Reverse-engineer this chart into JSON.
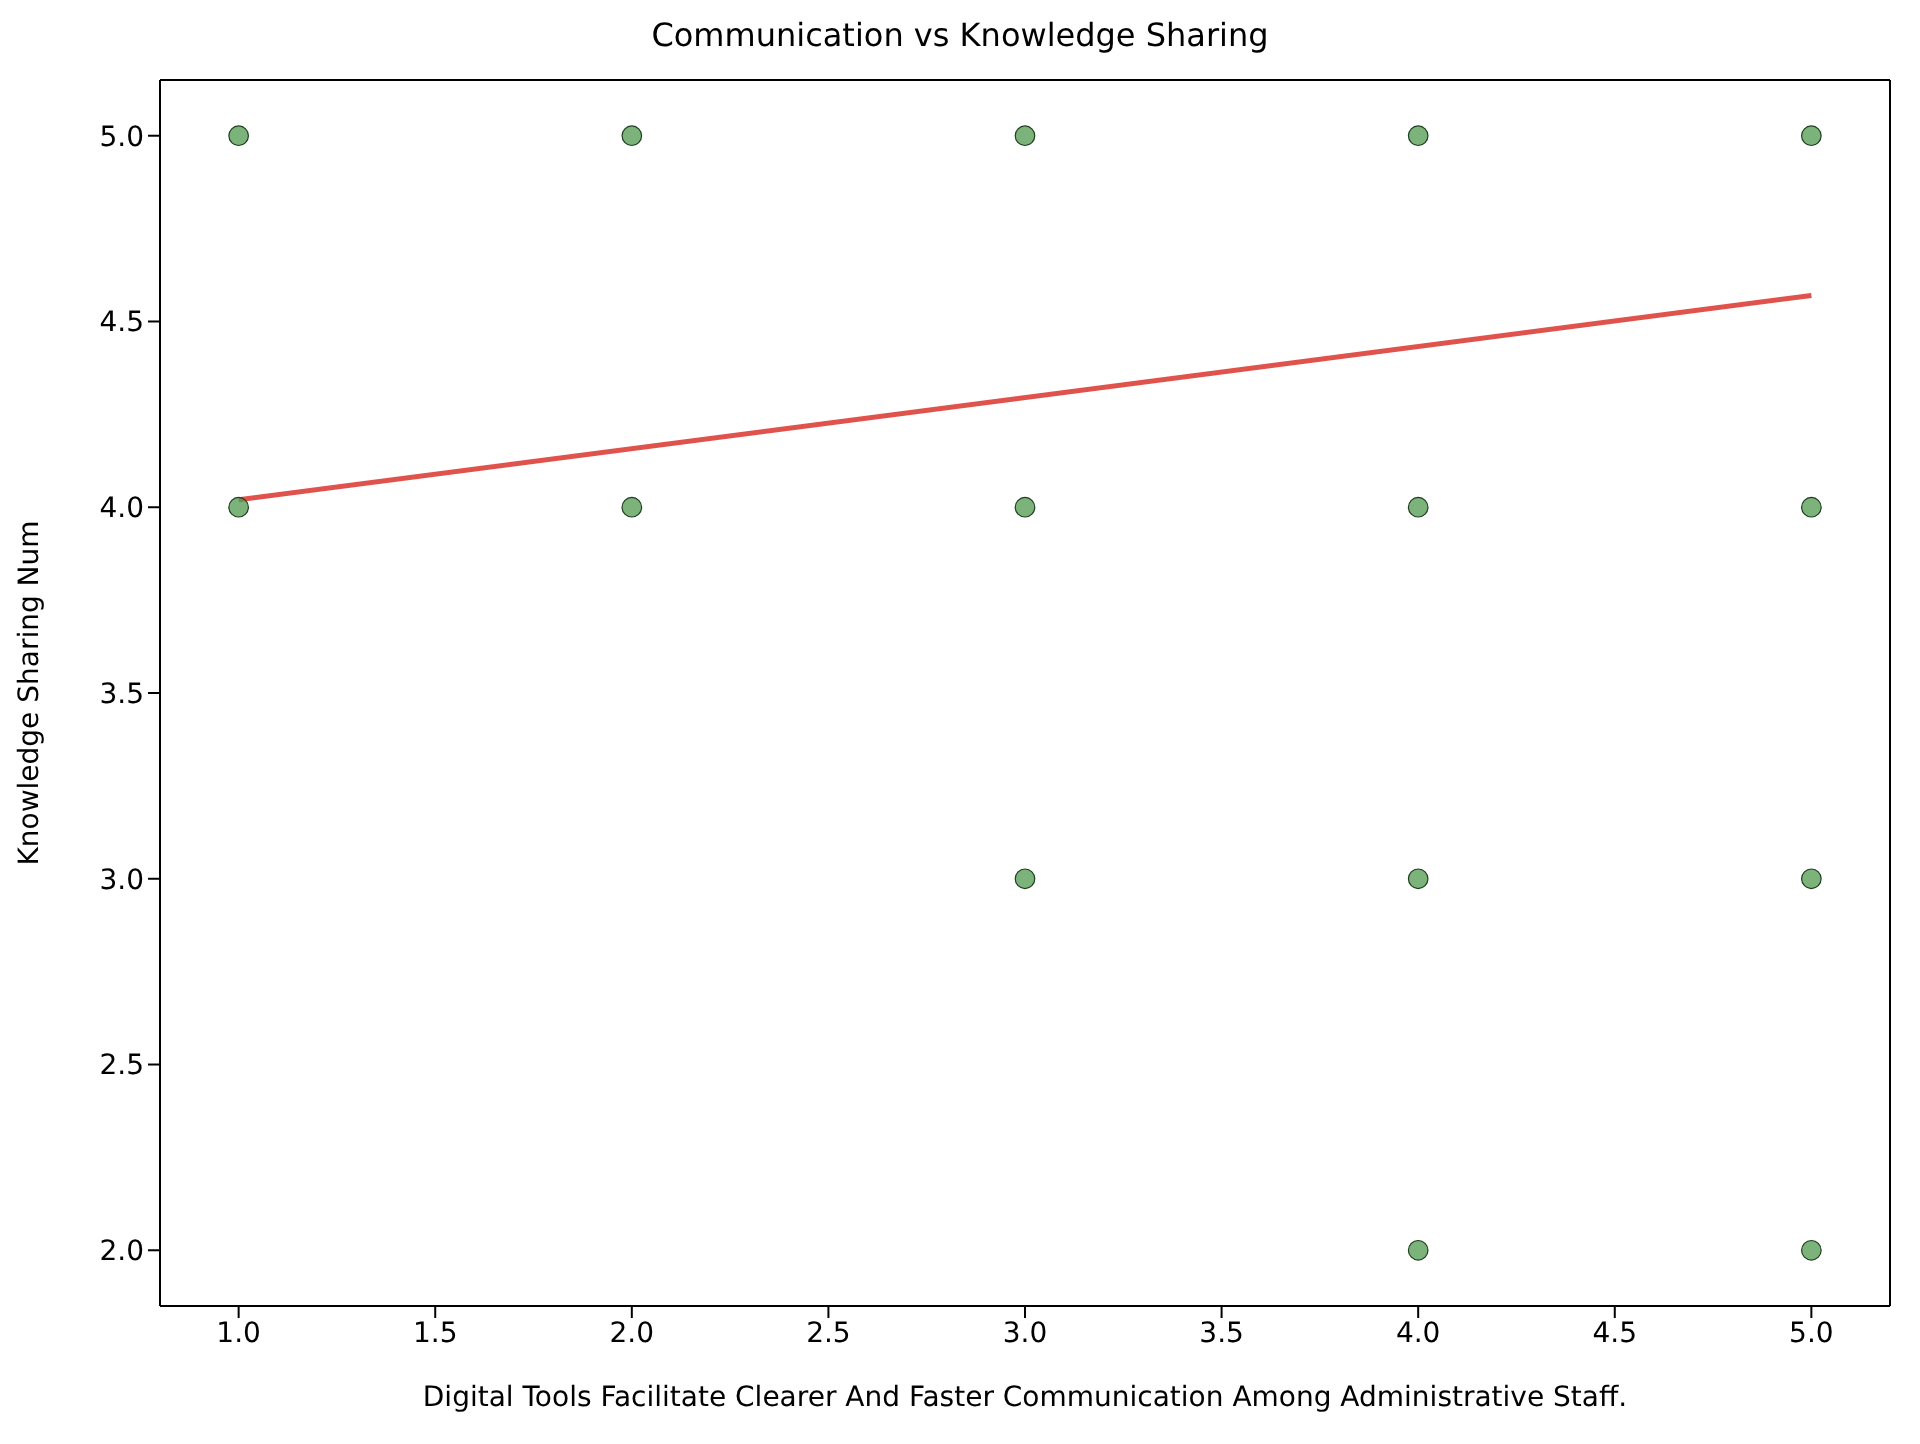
{
  "chart_data": {
    "type": "scatter",
    "title": "Communication vs Knowledge Sharing",
    "xlabel": "Digital Tools Facilitate Clearer And Faster Communication Among Administrative Staff.",
    "ylabel": "Knowledge Sharing Num",
    "xlim": [
      0.8,
      5.2
    ],
    "ylim": [
      1.85,
      5.15
    ],
    "xticks": [
      {
        "value": 1,
        "label": "1.0"
      },
      {
        "value": 1.5,
        "label": "1.5"
      },
      {
        "value": 2,
        "label": "2.0"
      },
      {
        "value": 2.5,
        "label": "2.5"
      },
      {
        "value": 3,
        "label": "3.0"
      },
      {
        "value": 3.5,
        "label": "3.5"
      },
      {
        "value": 4,
        "label": "4.0"
      },
      {
        "value": 4.5,
        "label": "4.5"
      },
      {
        "value": 5,
        "label": "5.0"
      }
    ],
    "yticks": [
      {
        "value": 2,
        "label": "2.0"
      },
      {
        "value": 2.5,
        "label": "2.5"
      },
      {
        "value": 3,
        "label": "3.0"
      },
      {
        "value": 3.5,
        "label": "3.5"
      },
      {
        "value": 4,
        "label": "4.0"
      },
      {
        "value": 4.5,
        "label": "4.5"
      },
      {
        "value": 5,
        "label": "5.0"
      }
    ],
    "grid": false,
    "legend": false,
    "marker": "circle",
    "series": [
      {
        "color": "#4f9a4f",
        "x": [
          1,
          1,
          2,
          2,
          3,
          3,
          3,
          4,
          4,
          4,
          4,
          5,
          5,
          5,
          5
        ],
        "values": [
          5,
          4,
          5,
          4,
          5,
          4,
          3,
          5,
          4,
          3,
          2,
          5,
          4,
          3,
          2
        ]
      },
      {
        "type": "line",
        "color": "#e0524c",
        "line_style": "solid",
        "marker": "none",
        "x": [
          1,
          5
        ],
        "values": [
          4.02,
          4.57
        ]
      }
    ]
  }
}
